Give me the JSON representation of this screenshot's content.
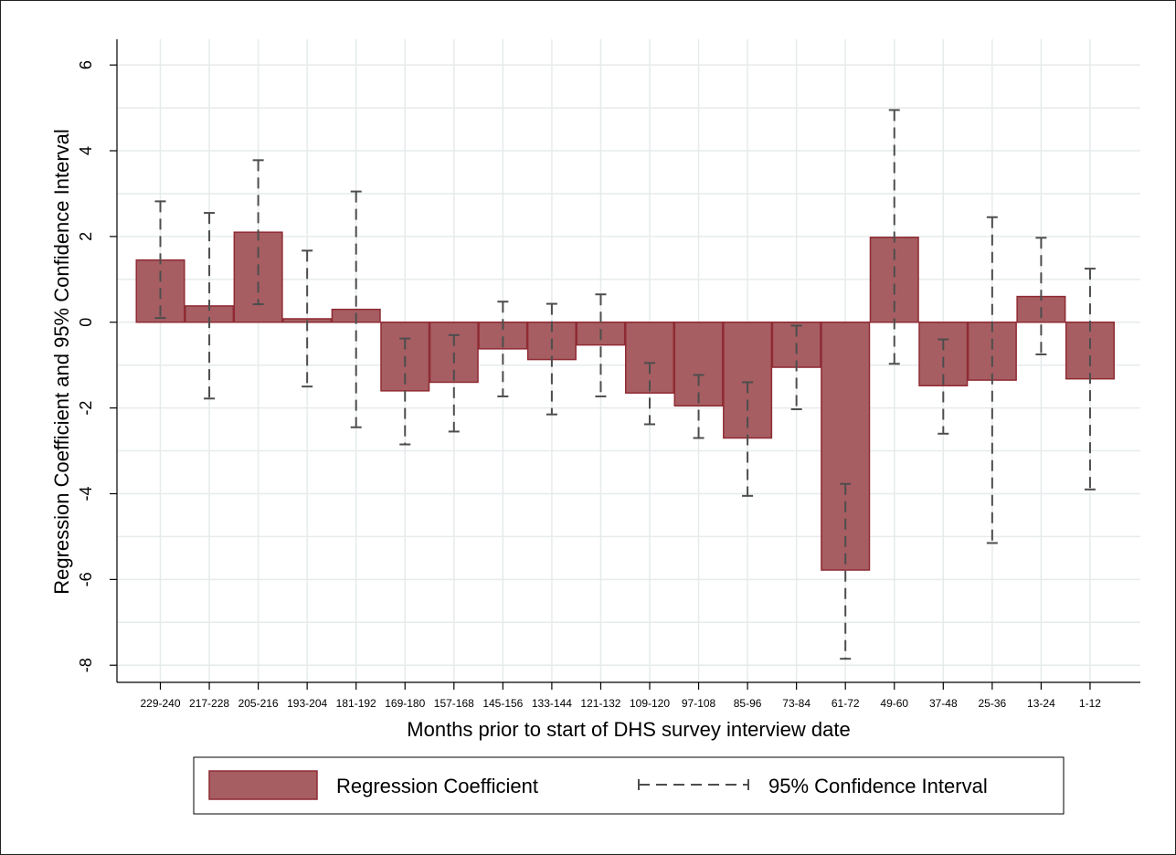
{
  "chart_data": {
    "type": "bar",
    "xlabel": "Months prior to start of DHS survey interview date",
    "ylabel": "Regression Coefficient and 95% Confidence Interval",
    "ylim": [
      -8.4,
      6.6
    ],
    "yticks": [
      -8,
      -6,
      -4,
      -2,
      0,
      2,
      4,
      6
    ],
    "grid": true,
    "legend_position": "bottom",
    "categories": [
      "229-240",
      "217-228",
      "205-216",
      "193-204",
      "181-192",
      "169-180",
      "157-168",
      "145-156",
      "133-144",
      "121-132",
      "109-120",
      "97-108",
      "85-96",
      "73-84",
      "61-72",
      "49-60",
      "37-48",
      "25-36",
      "13-24",
      "1-12"
    ],
    "series": [
      {
        "name": "Regression Coefficient",
        "values": [
          1.45,
          0.38,
          2.1,
          0.08,
          0.3,
          -1.6,
          -1.4,
          -0.62,
          -0.87,
          -0.53,
          -1.65,
          -1.95,
          -2.7,
          -1.05,
          -5.78,
          1.98,
          -1.48,
          -1.35,
          0.6,
          -1.32
        ]
      },
      {
        "name": "95% Confidence Interval",
        "lower": [
          0.1,
          -1.78,
          0.42,
          -1.5,
          -2.45,
          -2.85,
          -2.55,
          -1.73,
          -2.15,
          -1.73,
          -2.38,
          -2.7,
          -4.05,
          -2.03,
          -7.85,
          -0.97,
          -2.6,
          -5.15,
          -0.75,
          -3.9
        ],
        "upper": [
          2.82,
          2.55,
          3.78,
          1.67,
          3.05,
          -0.38,
          -0.3,
          0.48,
          0.43,
          0.65,
          -0.95,
          -1.23,
          -1.4,
          -0.08,
          -3.77,
          4.95,
          -0.4,
          2.45,
          1.97,
          1.25
        ]
      }
    ],
    "colors": {
      "bar_fill": "#a65e62",
      "bar_stroke": "#8f2a33",
      "ci_line": "#4d4d4d",
      "grid": "#e6ebeb",
      "axis": "#000000"
    }
  }
}
